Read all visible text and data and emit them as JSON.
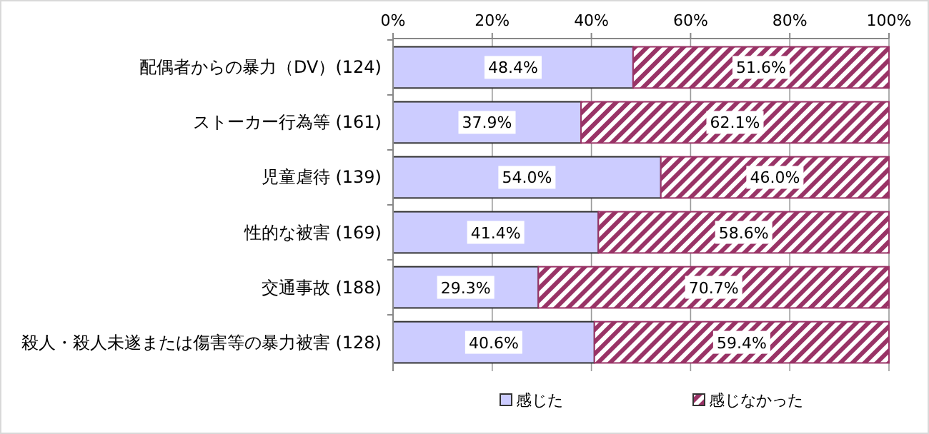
{
  "chart_data": {
    "type": "bar",
    "orientation": "horizontal",
    "stacked": true,
    "categories": [
      "配偶者からの暴力（DV）(124)",
      "ストーカー行為等 (161)",
      "児童虐待 (139)",
      "性的な被害 (169)",
      "交通事故 (188)",
      "殺人・殺人未遂または傷害等の暴力被害 (128)"
    ],
    "series": [
      {
        "name": "感じた",
        "color": "#ccccff",
        "values": [
          48.4,
          37.9,
          54.0,
          41.4,
          29.3,
          40.6
        ],
        "value_labels": [
          "48.4%",
          "37.9%",
          "54.0%",
          "41.4%",
          "29.3%",
          "40.6%"
        ]
      },
      {
        "name": "感じなかった",
        "color": "#993366",
        "values": [
          51.6,
          62.1,
          46.0,
          58.6,
          70.7,
          59.4
        ],
        "value_labels": [
          "51.6%",
          "62.1%",
          "46.0%",
          "58.6%",
          "70.7%",
          "59.4%"
        ]
      }
    ],
    "xlim": [
      0,
      100
    ],
    "xticks": [
      {
        "value": 0,
        "label": "0%"
      },
      {
        "value": 20,
        "label": "20%"
      },
      {
        "value": 40,
        "label": "40%"
      },
      {
        "value": 60,
        "label": "60%"
      },
      {
        "value": 80,
        "label": "80%"
      },
      {
        "value": 100,
        "label": "100%"
      }
    ],
    "grid": "x",
    "legend": "bottom"
  }
}
